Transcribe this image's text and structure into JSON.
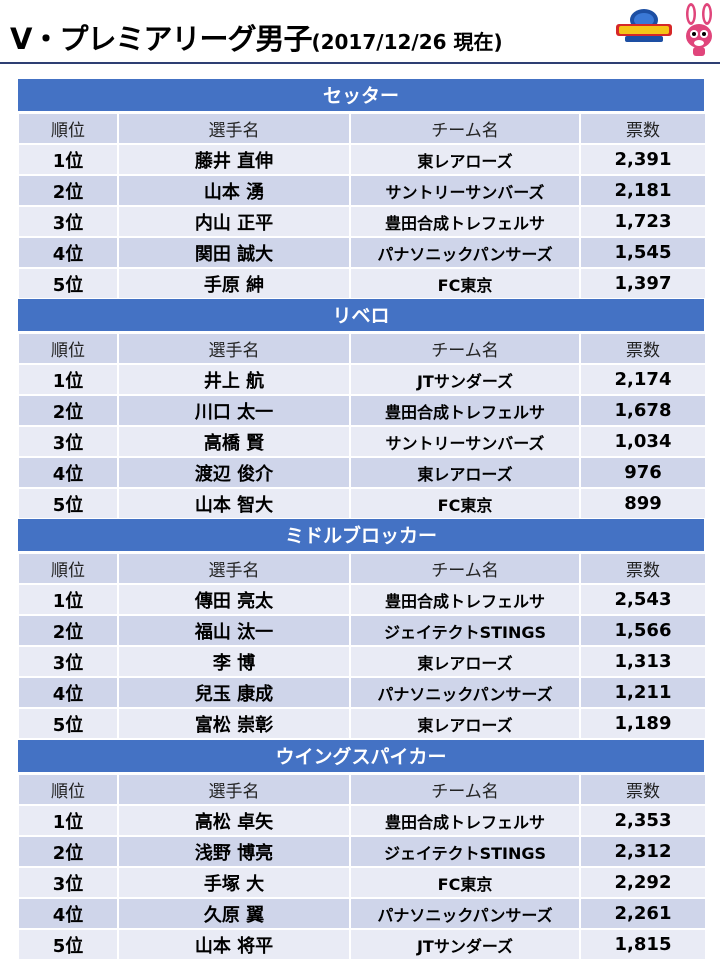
{
  "header": {
    "title": "V・プレミアリーグ男子",
    "date": "(2017/12/26 現在)"
  },
  "columns": [
    "順位",
    "選手名",
    "チーム名",
    "票数"
  ],
  "sections": [
    {
      "title": "セッター",
      "rows": [
        {
          "rank": "1位",
          "name": "藤井 直伸",
          "team": "東レアローズ",
          "votes": "2,391"
        },
        {
          "rank": "2位",
          "name": "山本 湧",
          "team": "サントリーサンバーズ",
          "votes": "2,181"
        },
        {
          "rank": "3位",
          "name": "内山 正平",
          "team": "豊田合成トレフェルサ",
          "votes": "1,723"
        },
        {
          "rank": "4位",
          "name": "関田 誠大",
          "team": "パナソニックパンサーズ",
          "votes": "1,545"
        },
        {
          "rank": "5位",
          "name": "手原 紳",
          "team": "FC東京",
          "votes": "1,397"
        }
      ]
    },
    {
      "title": "リベロ",
      "rows": [
        {
          "rank": "1位",
          "name": "井上 航",
          "team": "JTサンダーズ",
          "votes": "2,174"
        },
        {
          "rank": "2位",
          "name": "川口 太一",
          "team": "豊田合成トレフェルサ",
          "votes": "1,678"
        },
        {
          "rank": "3位",
          "name": "高橋 賢",
          "team": "サントリーサンバーズ",
          "votes": "1,034"
        },
        {
          "rank": "4位",
          "name": "渡辺 俊介",
          "team": "東レアローズ",
          "votes": "976"
        },
        {
          "rank": "5位",
          "name": "山本 智大",
          "team": "FC東京",
          "votes": "899"
        }
      ]
    },
    {
      "title": "ミドルブロッカー",
      "rows": [
        {
          "rank": "1位",
          "name": "傳田 亮太",
          "team": "豊田合成トレフェルサ",
          "votes": "2,543"
        },
        {
          "rank": "2位",
          "name": "福山 汰一",
          "team": "ジェイテクトSTINGS",
          "votes": "1,566"
        },
        {
          "rank": "3位",
          "name": "李 博",
          "team": "東レアローズ",
          "votes": "1,313"
        },
        {
          "rank": "4位",
          "name": "兒玉 康成",
          "team": "パナソニックパンサーズ",
          "votes": "1,211"
        },
        {
          "rank": "5位",
          "name": "富松 崇彰",
          "team": "東レアローズ",
          "votes": "1,189"
        }
      ]
    },
    {
      "title": "ウイングスパイカー",
      "rows": [
        {
          "rank": "1位",
          "name": "高松 卓矢",
          "team": "豊田合成トレフェルサ",
          "votes": "2,353"
        },
        {
          "rank": "2位",
          "name": "浅野 博亮",
          "team": "ジェイテクトSTINGS",
          "votes": "2,312"
        },
        {
          "rank": "3位",
          "name": "手塚 大",
          "team": "FC東京",
          "votes": "2,292"
        },
        {
          "rank": "4位",
          "name": "久原 翼",
          "team": "パナソニックパンサーズ",
          "votes": "2,261"
        },
        {
          "rank": "5位",
          "name": "山本 将平",
          "team": "JTサンダーズ",
          "votes": "1,815"
        }
      ]
    }
  ],
  "colors": {
    "section_header": "#4472c4",
    "row_light": "#e9ebf5",
    "row_dark": "#cfd5ea",
    "rule": "#2e3f73"
  },
  "icons": {
    "logo": "league-logo-icon",
    "mascot": "rabbit-mascot-icon"
  }
}
